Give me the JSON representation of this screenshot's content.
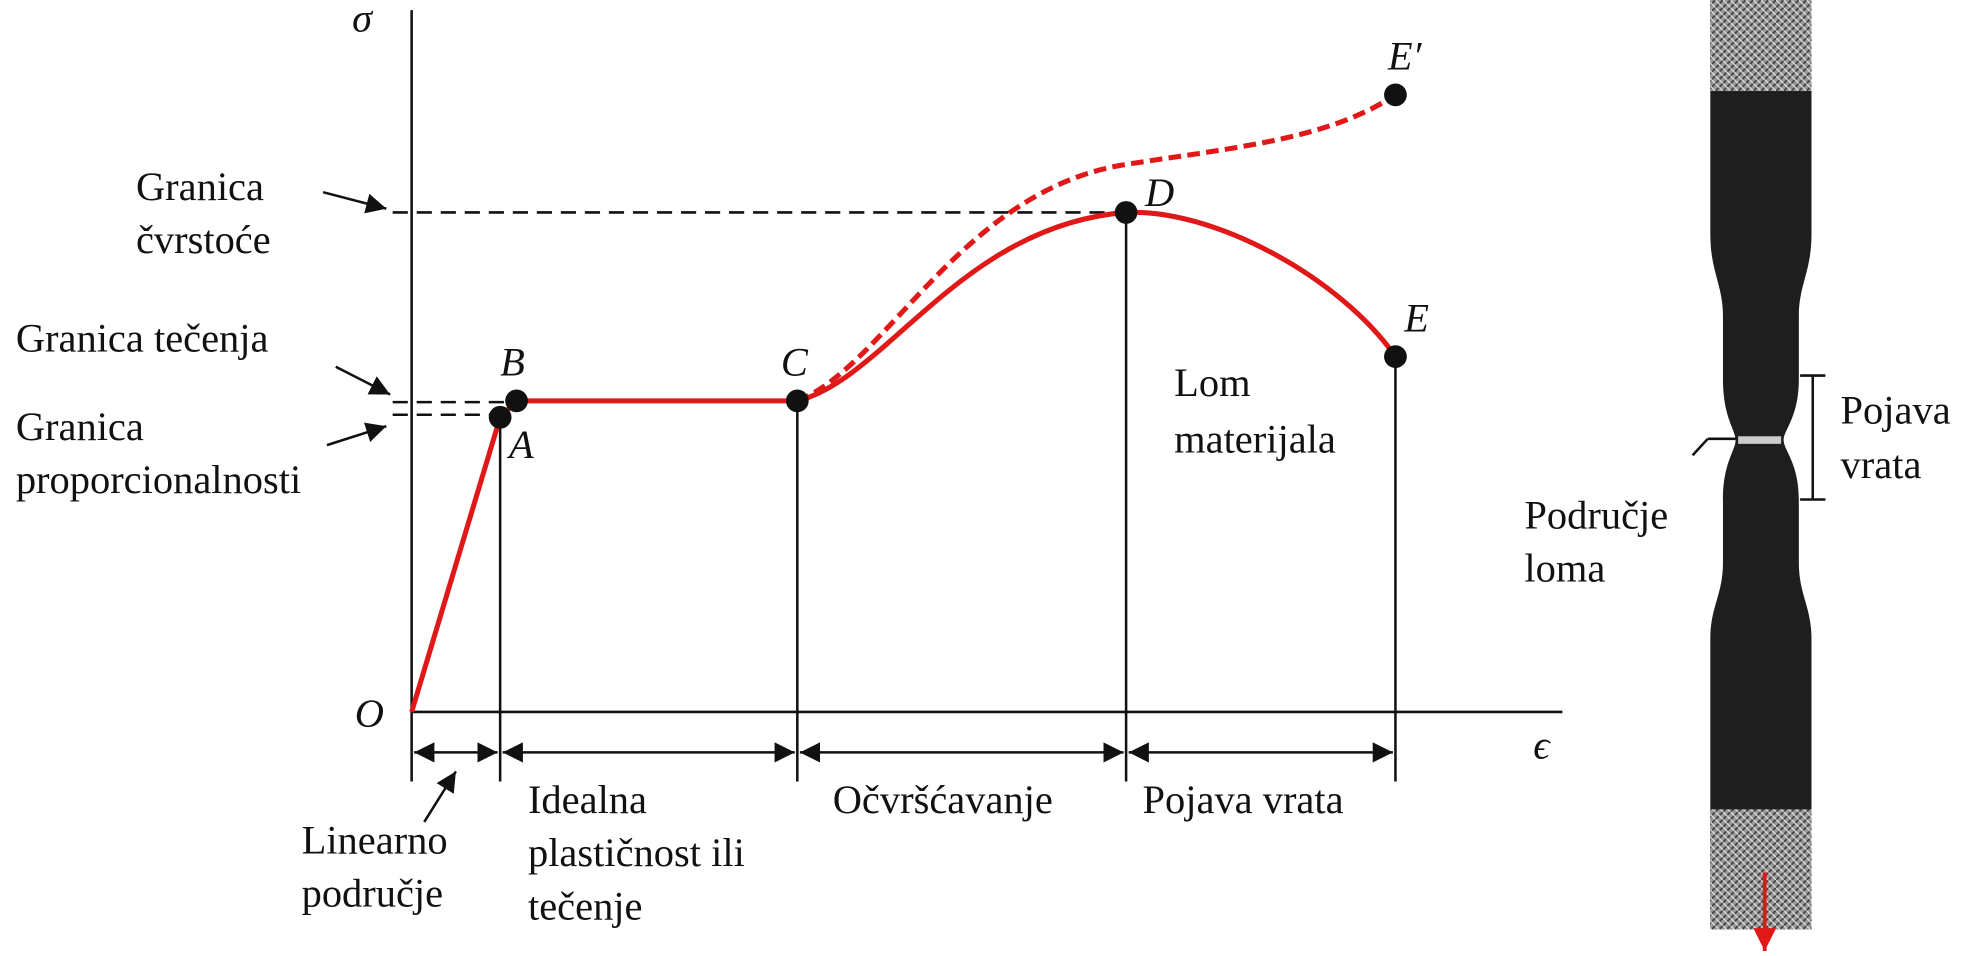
{
  "axes": {
    "y_label": "σ",
    "x_label": "ϵ",
    "origin": "O"
  },
  "points": [
    {
      "label": "A"
    },
    {
      "label": "B"
    },
    {
      "label": "C"
    },
    {
      "label": "D"
    },
    {
      "label": "E"
    },
    {
      "label": "E′"
    }
  ],
  "left_labels": [
    {
      "lines": [
        "Granica",
        "čvrstoće"
      ]
    },
    {
      "lines": [
        "Granica tečenja"
      ]
    },
    {
      "lines": [
        "Granica",
        "proporcionalnosti"
      ]
    }
  ],
  "regions": [
    {
      "lines": [
        "Linearno",
        "područje"
      ]
    },
    {
      "lines": [
        "Idealna",
        "plastičnost ili",
        "tečenje"
      ]
    },
    {
      "lines": [
        "Očvršćavanje"
      ]
    },
    {
      "lines": [
        "Pojava vrata"
      ]
    }
  ],
  "fracture_label": {
    "lines": [
      "Lom",
      "materijala"
    ]
  },
  "photo": {
    "neck_label": {
      "lines": [
        "Pojava",
        "vrata"
      ]
    },
    "fracture_zone": {
      "lines": [
        "Područje",
        "loma"
      ]
    }
  }
}
